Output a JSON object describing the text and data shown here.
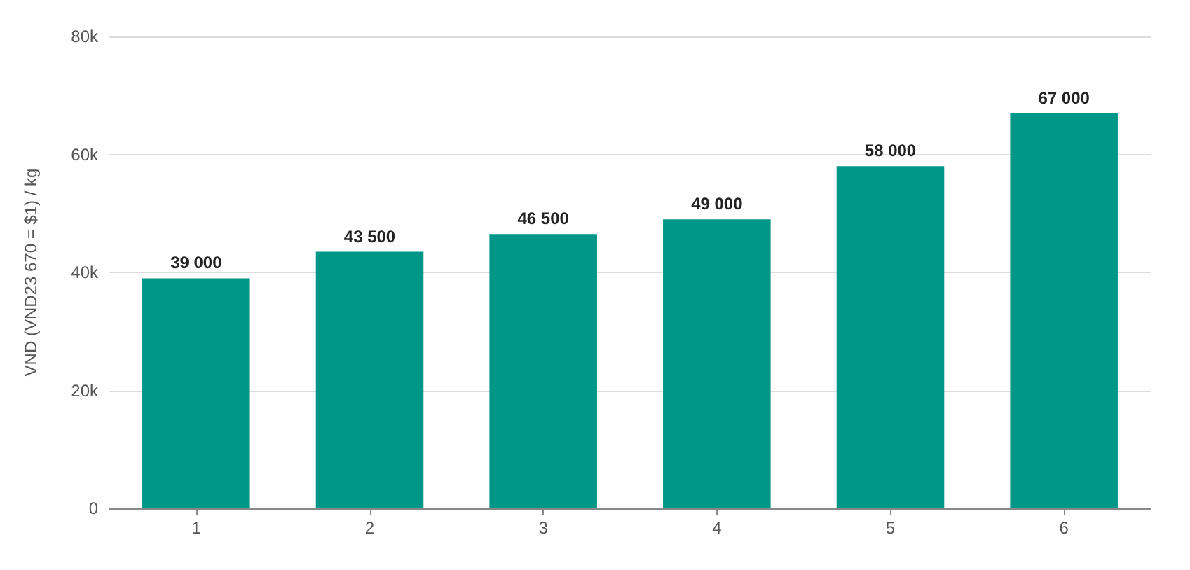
{
  "chart_data": {
    "type": "bar",
    "ylabel": "VND (VND23 670 = $1) / kg",
    "categories": [
      "1",
      "2",
      "3",
      "4",
      "5",
      "6"
    ],
    "values": [
      39000,
      43500,
      46500,
      49000,
      58000,
      67000
    ],
    "value_labels": [
      "39 000",
      "43 500",
      "46 500",
      "49 000",
      "58 000",
      "67 000"
    ],
    "color": "#009688",
    "ylim": [
      0,
      80000
    ],
    "yticks": [
      {
        "value": 0,
        "label": "0"
      },
      {
        "value": 20000,
        "label": "20k"
      },
      {
        "value": 40000,
        "label": "40k"
      },
      {
        "value": 60000,
        "label": "60k"
      },
      {
        "value": 80000,
        "label": "80k"
      }
    ],
    "grid": "y"
  }
}
